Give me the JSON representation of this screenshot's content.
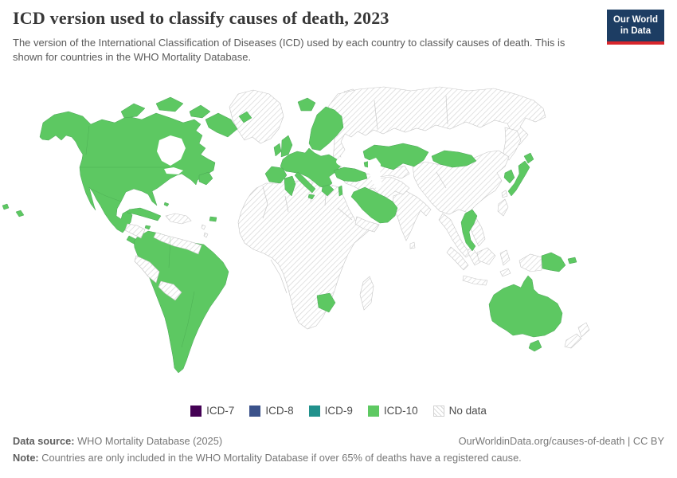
{
  "header": {
    "title": "ICD version used to classify causes of death, 2023",
    "subtitle": "The version of the International Classification of Diseases (ICD) used by each country to classify causes of death. This is shown for countries in the WHO Mortality Database.",
    "logo": {
      "line1": "Our World",
      "line2": "in Data"
    }
  },
  "theme": {
    "navy": "#1d3d63",
    "logo_red": "#d8262c",
    "green": "#5dc862",
    "hatch_line": "#d6d6d6"
  },
  "legend": {
    "items": [
      {
        "label": "ICD-7",
        "color": "#440154",
        "hatch": false
      },
      {
        "label": "ICD-8",
        "color": "#3b528b",
        "hatch": false
      },
      {
        "label": "ICD-9",
        "color": "#21918c",
        "hatch": false
      },
      {
        "label": "ICD-10",
        "color": "#5ec962",
        "hatch": false
      },
      {
        "label": "No data",
        "color": "#ffffff",
        "hatch": true
      }
    ]
  },
  "footer": {
    "source_label": "Data source:",
    "source_text": " WHO Mortality Database (2025)",
    "link_text": "OurWorldinData.org/causes-of-death | CC BY",
    "note_label": "Note:",
    "note_text": " Countries are only included in the WHO Mortality Database if over 65% of deaths have a registered cause."
  },
  "chart_data": {
    "type": "choropleth_map",
    "title": "ICD version used to classify causes of death, 2023",
    "year": 2023,
    "legend_categories": [
      "ICD-7",
      "ICD-8",
      "ICD-9",
      "ICD-10",
      "No data"
    ],
    "category_colors": {
      "ICD-7": "#440154",
      "ICD-8": "#3b528b",
      "ICD-9": "#21918c",
      "ICD-10": "#5ec962",
      "No data": "white with diagonal gray hatching"
    },
    "legend_position": "bottom-center",
    "observed_values": {
      "ICD-10": [
        "Canada",
        "United States",
        "Mexico",
        "Guatemala",
        "Belize",
        "Costa Rica",
        "Panama",
        "Cuba",
        "Jamaica",
        "Puerto Rico",
        "Colombia",
        "Ecuador",
        "Brazil",
        "Chile",
        "Argentina",
        "Paraguay",
        "Uruguay",
        "Iceland",
        "United Kingdom",
        "Ireland",
        "Norway",
        "Sweden",
        "Finland",
        "Denmark",
        "Estonia",
        "Latvia",
        "Lithuania",
        "Poland",
        "Germany",
        "Netherlands",
        "Belgium",
        "France",
        "Spain",
        "Portugal",
        "Switzerland",
        "Austria",
        "Czechia",
        "Slovakia",
        "Hungary",
        "Romania",
        "Bulgaria",
        "Croatia",
        "Serbia",
        "Greece",
        "Italy",
        "Tunisia",
        "Turkey",
        "Georgia",
        "Israel",
        "Saudi Arabia",
        "Oman",
        "Kazakhstan",
        "Mongolia",
        "South Korea",
        "Japan",
        "Thailand",
        "Botswana",
        "Papua New Guinea",
        "Australia"
      ],
      "No data": [
        "Greenland",
        "Russia",
        "Ukraine",
        "Belarus",
        "China",
        "India",
        "Pakistan",
        "Afghanistan",
        "Iran",
        "Iraq",
        "Syria",
        "Yemen",
        "Central Asian states",
        "most of Africa",
        "Madagascar",
        "Venezuela",
        "Guyana",
        "Suriname",
        "Peru",
        "Bolivia",
        "Honduras",
        "Nicaragua",
        "Haiti",
        "Dominican Republic",
        "Myanmar",
        "Laos",
        "Vietnam",
        "Cambodia",
        "Malaysia",
        "Indonesia",
        "Philippines",
        "Sri Lanka",
        "New Zealand"
      ]
    },
    "note": "No ICD-7, ICD-8 or ICD-9 countries are visible on the map; all countries with data shown use ICD-10."
  }
}
